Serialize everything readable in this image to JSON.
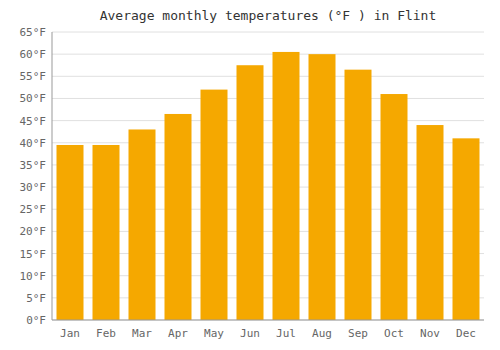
{
  "chart_data": {
    "type": "bar",
    "title": "Average monthly temperatures (°F ) in Flint",
    "categories": [
      "Jan",
      "Feb",
      "Mar",
      "Apr",
      "May",
      "Jun",
      "Jul",
      "Aug",
      "Sep",
      "Oct",
      "Nov",
      "Dec"
    ],
    "values": [
      39.5,
      39.5,
      43.0,
      46.5,
      52.0,
      57.5,
      60.5,
      60.0,
      56.5,
      51.0,
      44.0,
      41.0
    ],
    "color": "#F5A800",
    "ylim": [
      0,
      65
    ],
    "yticks": [
      {
        "value": 0,
        "label": "0°F"
      },
      {
        "value": 5,
        "label": "5°F"
      },
      {
        "value": 10,
        "label": "10°F"
      },
      {
        "value": 15,
        "label": "15°F"
      },
      {
        "value": 20,
        "label": "20°F"
      },
      {
        "value": 25,
        "label": "25°F"
      },
      {
        "value": 30,
        "label": "30°F"
      },
      {
        "value": 35,
        "label": "35°F"
      },
      {
        "value": 40,
        "label": "40°F"
      },
      {
        "value": 45,
        "label": "45°F"
      },
      {
        "value": 50,
        "label": "50°F"
      },
      {
        "value": 55,
        "label": "55°F"
      },
      {
        "value": 60,
        "label": "60°F"
      },
      {
        "value": 65,
        "label": "65°F"
      }
    ],
    "grid": true
  }
}
